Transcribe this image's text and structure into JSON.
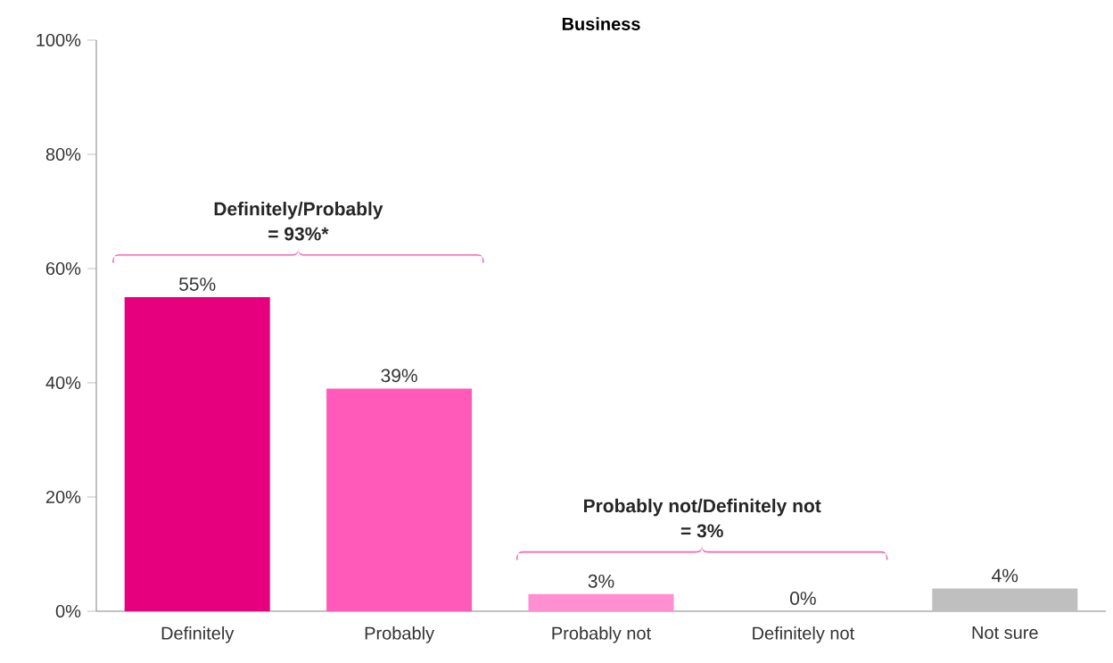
{
  "chart_data": {
    "type": "bar",
    "title": "Business",
    "categories": [
      "Definitely",
      "Probably",
      "Probably not",
      "Definitely not",
      "Not sure"
    ],
    "values": [
      55,
      39,
      3,
      0,
      4
    ],
    "colors": [
      "#e6007e",
      "#ff5ab9",
      "#ff8fd0",
      "#ff8fd0",
      "#bfbfbf"
    ],
    "value_labels": [
      "55%",
      "39%",
      "3%",
      "0%",
      "4%"
    ],
    "ylim": [
      0,
      100
    ],
    "yticks": [
      {
        "value": 0,
        "label": "0%"
      },
      {
        "value": 20,
        "label": "20%"
      },
      {
        "value": 40,
        "label": "40%"
      },
      {
        "value": 60,
        "label": "60%"
      },
      {
        "value": 80,
        "label": "80%"
      },
      {
        "value": 100,
        "label": "100%"
      }
    ],
    "annotations": [
      "Definitely/Probably",
      "= 93%*",
      "Probably not/Definitely not",
      "= 3%"
    ],
    "grid": false
  }
}
